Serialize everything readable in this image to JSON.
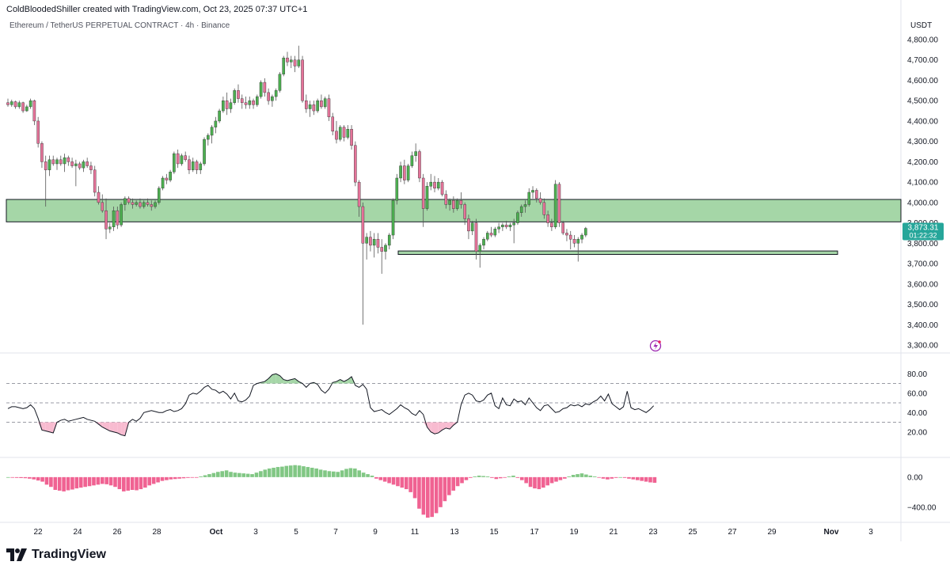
{
  "header": {
    "credit": "ColdBloodedShiller created with TradingView.com, Oct 23, 2025 07:37 UTC+1",
    "legend": "Ethereum / TetherUS PERPETUAL CONTRACT · 4h · Binance",
    "unit": "USDT"
  },
  "price_tag": {
    "value": "3,873.31",
    "countdown": "01:22:32",
    "color": "#26a69a"
  },
  "logo": {
    "text": "TradingView"
  },
  "colors": {
    "up": "#4caf50",
    "down": "#e57399",
    "zone": "#a5d6a7",
    "rsi_line": "#131722",
    "rsi_over": "#a5d6a7",
    "rsi_under": "#f8bbd0"
  },
  "chart_data": [
    {
      "type": "candlestick",
      "title": "Ethereum / TetherUS PERPETUAL CONTRACT · 4h · Binance",
      "ylabel": "USDT",
      "ylim": [
        3300,
        4800
      ],
      "yticks": [
        "3,300.00",
        "3,400.00",
        "3,500.00",
        "3,600.00",
        "3,700.00",
        "3,800.00",
        "3,900.00",
        "4,000.00",
        "4,100.00",
        "4,200.00",
        "4,300.00",
        "4,400.00",
        "4,500.00",
        "4,600.00",
        "4,700.00",
        "4,800.00"
      ],
      "xticks": [
        "22",
        "24",
        "26",
        "28",
        "Oct",
        "3",
        "5",
        "7",
        "9",
        "11",
        "13",
        "15",
        "17",
        "19",
        "21",
        "23",
        "25",
        "27",
        "29",
        "Nov",
        "3"
      ],
      "zones": [
        {
          "from": 3905,
          "to": 4015
        },
        {
          "from": 3745,
          "to": 3762
        }
      ],
      "ohlc": [
        [
          4490,
          4510,
          4470,
          4480
        ],
        [
          4480,
          4505,
          4470,
          4495
        ],
        [
          4495,
          4500,
          4460,
          4470
        ],
        [
          4470,
          4500,
          4460,
          4490
        ],
        [
          4490,
          4495,
          4440,
          4450
        ],
        [
          4450,
          4480,
          4445,
          4470
        ],
        [
          4470,
          4510,
          4460,
          4500
        ],
        [
          4500,
          4505,
          4380,
          4400
        ],
        [
          4400,
          4420,
          4270,
          4290
        ],
        [
          4290,
          4300,
          4170,
          4200
        ],
        [
          4200,
          4230,
          3980,
          4160
        ],
        [
          4160,
          4230,
          4130,
          4210
        ],
        [
          4210,
          4230,
          4180,
          4190
        ],
        [
          4190,
          4220,
          4160,
          4210
        ],
        [
          4210,
          4230,
          4180,
          4190
        ],
        [
          4190,
          4240,
          4150,
          4220
        ],
        [
          4220,
          4230,
          4180,
          4200
        ],
        [
          4200,
          4220,
          4170,
          4180
        ],
        [
          4180,
          4210,
          4080,
          4190
        ],
        [
          4190,
          4200,
          4160,
          4170
        ],
        [
          4170,
          4210,
          4150,
          4200
        ],
        [
          4200,
          4220,
          4170,
          4180
        ],
        [
          4180,
          4200,
          4140,
          4160
        ],
        [
          4160,
          4180,
          4030,
          4050
        ],
        [
          4050,
          4080,
          3990,
          4000
        ],
        [
          4000,
          4040,
          3950,
          3960
        ],
        [
          3960,
          4020,
          3820,
          3870
        ],
        [
          3870,
          3900,
          3850,
          3880
        ],
        [
          3880,
          3980,
          3860,
          3960
        ],
        [
          3960,
          3980,
          3870,
          3890
        ],
        [
          3890,
          4000,
          3880,
          3990
        ],
        [
          3990,
          4030,
          3960,
          4020
        ],
        [
          4020,
          4030,
          3990,
          4000
        ],
        [
          4000,
          4020,
          3970,
          3990
        ],
        [
          3990,
          4010,
          3980,
          4000
        ],
        [
          4000,
          4020,
          3970,
          3980
        ],
        [
          3980,
          4010,
          3970,
          4000
        ],
        [
          4000,
          4020,
          3980,
          3990
        ],
        [
          3990,
          4010,
          3960,
          3980
        ],
        [
          3980,
          4010,
          3970,
          4000
        ],
        [
          4000,
          4080,
          3990,
          4070
        ],
        [
          4070,
          4130,
          4060,
          4120
        ],
        [
          4120,
          4140,
          4090,
          4110
        ],
        [
          4110,
          4160,
          4100,
          4150
        ],
        [
          4150,
          4250,
          4140,
          4240
        ],
        [
          4240,
          4260,
          4170,
          4190
        ],
        [
          4190,
          4240,
          4180,
          4230
        ],
        [
          4230,
          4250,
          4200,
          4210
        ],
        [
          4210,
          4230,
          4140,
          4160
        ],
        [
          4160,
          4220,
          4150,
          4200
        ],
        [
          4200,
          4210,
          4140,
          4160
        ],
        [
          4160,
          4200,
          4140,
          4190
        ],
        [
          4190,
          4320,
          4180,
          4310
        ],
        [
          4310,
          4340,
          4280,
          4330
        ],
        [
          4330,
          4380,
          4290,
          4370
        ],
        [
          4370,
          4420,
          4340,
          4400
        ],
        [
          4400,
          4460,
          4390,
          4450
        ],
        [
          4450,
          4520,
          4440,
          4500
        ],
        [
          4500,
          4540,
          4430,
          4460
        ],
        [
          4460,
          4510,
          4440,
          4490
        ],
        [
          4490,
          4560,
          4480,
          4550
        ],
        [
          4550,
          4580,
          4490,
          4510
        ],
        [
          4510,
          4530,
          4460,
          4490
        ],
        [
          4490,
          4520,
          4460,
          4480
        ],
        [
          4480,
          4520,
          4460,
          4500
        ],
        [
          4500,
          4510,
          4460,
          4480
        ],
        [
          4480,
          4530,
          4470,
          4520
        ],
        [
          4520,
          4600,
          4510,
          4590
        ],
        [
          4590,
          4610,
          4520,
          4540
        ],
        [
          4540,
          4560,
          4480,
          4500
        ],
        [
          4500,
          4530,
          4470,
          4520
        ],
        [
          4520,
          4560,
          4500,
          4550
        ],
        [
          4550,
          4640,
          4540,
          4630
        ],
        [
          4630,
          4720,
          4620,
          4710
        ],
        [
          4710,
          4740,
          4670,
          4690
        ],
        [
          4690,
          4720,
          4660,
          4700
        ],
        [
          4700,
          4720,
          4640,
          4670
        ],
        [
          4670,
          4770,
          4660,
          4700
        ],
        [
          4700,
          4720,
          4490,
          4500
        ],
        [
          4500,
          4530,
          4440,
          4460
        ],
        [
          4460,
          4500,
          4420,
          4480
        ],
        [
          4480,
          4500,
          4430,
          4450
        ],
        [
          4450,
          4510,
          4440,
          4500
        ],
        [
          4500,
          4530,
          4460,
          4470
        ],
        [
          4470,
          4520,
          4460,
          4510
        ],
        [
          4510,
          4530,
          4400,
          4420
        ],
        [
          4420,
          4440,
          4330,
          4350
        ],
        [
          4350,
          4400,
          4290,
          4310
        ],
        [
          4310,
          4380,
          4300,
          4370
        ],
        [
          4370,
          4380,
          4300,
          4320
        ],
        [
          4320,
          4380,
          4310,
          4360
        ],
        [
          4360,
          4380,
          4260,
          4280
        ],
        [
          4280,
          4300,
          4080,
          4100
        ],
        [
          4100,
          4110,
          3930,
          3980
        ],
        [
          3980,
          4000,
          3400,
          3800
        ],
        [
          3800,
          3850,
          3720,
          3830
        ],
        [
          3830,
          3860,
          3760,
          3790
        ],
        [
          3790,
          3850,
          3730,
          3820
        ],
        [
          3820,
          3850,
          3750,
          3780
        ],
        [
          3780,
          3820,
          3650,
          3760
        ],
        [
          3760,
          3800,
          3720,
          3790
        ],
        [
          3790,
          3850,
          3770,
          3840
        ],
        [
          3840,
          4020,
          3820,
          4010
        ],
        [
          4010,
          4140,
          3990,
          4120
        ],
        [
          4120,
          4200,
          4100,
          4180
        ],
        [
          4180,
          4210,
          4090,
          4110
        ],
        [
          4110,
          4190,
          4100,
          4180
        ],
        [
          4180,
          4250,
          4170,
          4230
        ],
        [
          4230,
          4290,
          4200,
          4250
        ],
        [
          4250,
          4260,
          4100,
          4120
        ],
        [
          4120,
          4140,
          3880,
          3970
        ],
        [
          3970,
          4100,
          3960,
          4080
        ],
        [
          4080,
          4140,
          4060,
          4100
        ],
        [
          4100,
          4130,
          4050,
          4070
        ],
        [
          4070,
          4120,
          4060,
          4100
        ],
        [
          4100,
          4110,
          4030,
          4040
        ],
        [
          4040,
          4060,
          3970,
          3990
        ],
        [
          3990,
          4020,
          3960,
          4010
        ],
        [
          4010,
          4030,
          3950,
          3970
        ],
        [
          3970,
          4020,
          3960,
          4010
        ],
        [
          4010,
          4050,
          3970,
          3990
        ],
        [
          3990,
          4000,
          3890,
          3920
        ],
        [
          3920,
          3940,
          3820,
          3860
        ],
        [
          3860,
          3910,
          3840,
          3900
        ],
        [
          3900,
          3920,
          3720,
          3760
        ],
        [
          3760,
          3800,
          3680,
          3790
        ],
        [
          3790,
          3830,
          3770,
          3820
        ],
        [
          3820,
          3860,
          3810,
          3850
        ],
        [
          3850,
          3880,
          3830,
          3840
        ],
        [
          3840,
          3880,
          3830,
          3870
        ],
        [
          3870,
          3900,
          3850,
          3880
        ],
        [
          3880,
          3900,
          3860,
          3890
        ],
        [
          3890,
          3910,
          3870,
          3880
        ],
        [
          3880,
          3900,
          3860,
          3890
        ],
        [
          3890,
          3920,
          3800,
          3900
        ],
        [
          3900,
          3960,
          3890,
          3950
        ],
        [
          3950,
          3990,
          3930,
          3980
        ],
        [
          3980,
          4010,
          3950,
          3990
        ],
        [
          3990,
          4070,
          3980,
          4050
        ],
        [
          4050,
          4080,
          4020,
          4060
        ],
        [
          4060,
          4070,
          4000,
          4020
        ],
        [
          4020,
          4050,
          3990,
          4000
        ],
        [
          4000,
          4020,
          3920,
          3940
        ],
        [
          3940,
          3960,
          3880,
          3900
        ],
        [
          3900,
          3920,
          3860,
          3880
        ],
        [
          3880,
          4110,
          3870,
          4090
        ],
        [
          4090,
          4100,
          3880,
          3900
        ],
        [
          3900,
          3910,
          3840,
          3850
        ],
        [
          3850,
          3870,
          3810,
          3840
        ],
        [
          3840,
          3860,
          3770,
          3820
        ],
        [
          3820,
          3840,
          3780,
          3800
        ],
        [
          3800,
          3830,
          3710,
          3820
        ],
        [
          3820,
          3850,
          3800,
          3840
        ],
        [
          3840,
          3880,
          3830,
          3873
        ]
      ]
    },
    {
      "type": "line",
      "name": "RSI",
      "ylim": [
        10,
        90
      ],
      "yticks": [
        "20.00",
        "40.00",
        "60.00",
        "80.00"
      ],
      "bands": [
        30,
        50,
        70
      ],
      "values": [
        44,
        46,
        46,
        45,
        44,
        45,
        48,
        44,
        34,
        22,
        21,
        20,
        19,
        30,
        32,
        33,
        31,
        32,
        33,
        34,
        35,
        33,
        32,
        31,
        28,
        25,
        23,
        21,
        20,
        19,
        17,
        16,
        30,
        33,
        31,
        34,
        40,
        41,
        42,
        41,
        40,
        40,
        42,
        43,
        41,
        42,
        44,
        49,
        58,
        60,
        59,
        62,
        66,
        68,
        64,
        63,
        60,
        62,
        59,
        54,
        60,
        52,
        51,
        53,
        57,
        68,
        70,
        71,
        72,
        75,
        79,
        80,
        78,
        74,
        73,
        74,
        75,
        72,
        70,
        66,
        70,
        71,
        69,
        63,
        60,
        64,
        71,
        72,
        74,
        72,
        74,
        77,
        68,
        66,
        69,
        64,
        45,
        41,
        42,
        43,
        40,
        38,
        41,
        44,
        48,
        45,
        43,
        39,
        37,
        42,
        38,
        25,
        20,
        18,
        19,
        22,
        24,
        23,
        27,
        30,
        48,
        58,
        60,
        58,
        52,
        51,
        53,
        58,
        60,
        47,
        44,
        55,
        48,
        47,
        54,
        51,
        52,
        48,
        55,
        50,
        45,
        42,
        47,
        48,
        44,
        40,
        41,
        44,
        45,
        48,
        47,
        48,
        46,
        49,
        48,
        51,
        53,
        57,
        52,
        59,
        49,
        46,
        43,
        46,
        62,
        45,
        43,
        44,
        42,
        40,
        43,
        47
      ]
    },
    {
      "type": "bar",
      "name": "Histogram",
      "ylim": [
        -560,
        220
      ],
      "yticks": [
        "−400.00",
        "0.00"
      ],
      "values": [
        0,
        -8,
        -10,
        -12,
        -14,
        -20,
        -30,
        -45,
        -60,
        -100,
        -130,
        -170,
        -180,
        -190,
        -175,
        -165,
        -150,
        -140,
        -130,
        -120,
        -110,
        -100,
        -90,
        -95,
        -110,
        -130,
        -160,
        -190,
        -180,
        -170,
        -175,
        -160,
        -140,
        -110,
        -90,
        -70,
        -50,
        -40,
        -30,
        -25,
        -20,
        -15,
        -10,
        -8,
        -5,
        10,
        25,
        40,
        55,
        70,
        80,
        90,
        70,
        60,
        55,
        50,
        45,
        40,
        60,
        80,
        100,
        115,
        125,
        135,
        140,
        150,
        155,
        160,
        155,
        145,
        135,
        125,
        115,
        100,
        90,
        80,
        75,
        70,
        90,
        110,
        120,
        115,
        90,
        60,
        40,
        20,
        -20,
        -40,
        -60,
        -80,
        -100,
        -120,
        -140,
        -160,
        -200,
        -280,
        -420,
        -500,
        -540,
        -530,
        -480,
        -400,
        -320,
        -240,
        -180,
        -120,
        -80,
        -40,
        -10,
        10,
        20,
        15,
        10,
        -10,
        -25,
        -15,
        -5,
        10,
        20,
        -10,
        -40,
        -80,
        -130,
        -150,
        -160,
        -140,
        -110,
        -80,
        -60,
        -40,
        -20,
        10,
        30,
        40,
        50,
        35,
        20,
        10,
        -5,
        -20,
        -30,
        -20,
        -10,
        0,
        -10,
        -20,
        -30,
        -40,
        -50,
        -60,
        -70,
        -75
      ]
    }
  ]
}
